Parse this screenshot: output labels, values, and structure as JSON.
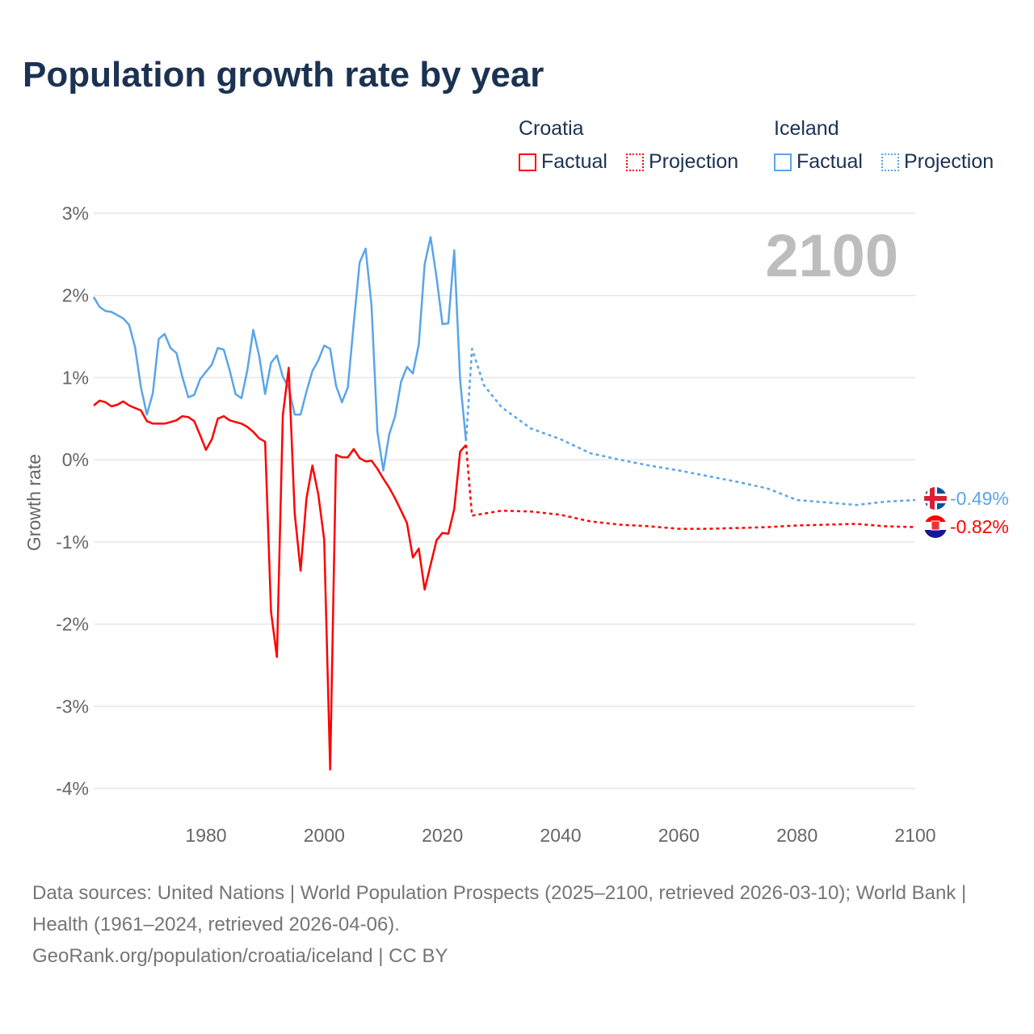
{
  "title": "Population growth rate by year",
  "legend": {
    "groups": [
      {
        "name": "Croatia",
        "factual": "Factual",
        "projection": "Projection",
        "color": "#ff0000"
      },
      {
        "name": "Iceland",
        "factual": "Factual",
        "projection": "Projection",
        "color": "#5aa5e8"
      }
    ]
  },
  "year_label": "2100",
  "end_labels": {
    "iceland": "-0.49%",
    "croatia": "-0.82%"
  },
  "source": {
    "line1": "Data sources: United Nations | World Population Prospects (2025–2100, retrieved 2026-03-10); World Bank | Health (1961–2024, retrieved 2026-04-06).",
    "line2": "GeoRank.org/population/croatia/iceland | CC BY"
  },
  "chart_data": {
    "type": "line",
    "title": "Population growth rate by year",
    "xlabel": "",
    "ylabel": "Growth rate",
    "xlim": [
      1961,
      2100
    ],
    "ylim": [
      -4,
      3
    ],
    "xticks": [
      1980,
      2000,
      2020,
      2040,
      2060,
      2080,
      2100
    ],
    "xtick_labels": [
      "1980",
      "2000",
      "2020",
      "2040",
      "2060",
      "2080",
      "2100"
    ],
    "yticks": [
      3,
      2,
      1,
      0,
      -1,
      -2,
      -3,
      -4
    ],
    "ytick_labels": [
      "3%",
      "2%",
      "1%",
      "0%",
      "-1%",
      "-2%",
      "-3%",
      "-4%"
    ],
    "grid": true,
    "legend_position": "top-right",
    "series": [
      {
        "name": "Iceland Factual",
        "color": "#5aa5e8",
        "dashed": false,
        "start": 1961,
        "values": [
          1.98,
          1.86,
          1.81,
          1.8,
          1.76,
          1.72,
          1.64,
          1.37,
          0.88,
          0.55,
          0.81,
          1.47,
          1.53,
          1.36,
          1.3,
          1.01,
          0.76,
          0.79,
          0.98,
          1.07,
          1.16,
          1.36,
          1.34,
          1.09,
          0.8,
          0.75,
          1.09,
          1.58,
          1.26,
          0.8,
          1.18,
          1.27,
          1.01,
          0.88,
          0.55,
          0.55,
          0.83,
          1.08,
          1.21,
          1.39,
          1.35,
          0.9,
          0.7,
          0.88,
          1.66,
          2.4,
          2.57,
          1.88,
          0.34,
          -0.13,
          0.31,
          0.53,
          0.95,
          1.13,
          1.05,
          1.4,
          2.38,
          2.71,
          2.22,
          1.65,
          1.66,
          2.55,
          0.97,
          0.23
        ]
      },
      {
        "name": "Croatia Factual",
        "color": "#ff0000",
        "dashed": false,
        "start": 1961,
        "values": [
          0.66,
          0.72,
          0.7,
          0.65,
          0.67,
          0.71,
          0.66,
          0.63,
          0.6,
          0.47,
          0.44,
          0.44,
          0.44,
          0.46,
          0.48,
          0.53,
          0.52,
          0.47,
          0.3,
          0.12,
          0.25,
          0.5,
          0.53,
          0.48,
          0.46,
          0.44,
          0.4,
          0.34,
          0.26,
          0.22,
          -1.85,
          -2.4,
          0.54,
          1.12,
          -0.65,
          -1.35,
          -0.47,
          -0.07,
          -0.42,
          -0.97,
          -3.77,
          0.06,
          0.03,
          0.03,
          0.13,
          0.02,
          -0.02,
          -0.01,
          -0.11,
          -0.23,
          -0.34,
          -0.47,
          -0.62,
          -0.77,
          -1.19,
          -1.08,
          -1.58,
          -1.28,
          -0.98,
          -0.89,
          -0.9,
          -0.6,
          0.1,
          0.18
        ]
      },
      {
        "name": "Iceland Projection",
        "color": "#5aa5e8",
        "dashed": true,
        "x": [
          2024,
          2025,
          2027,
          2030,
          2035,
          2040,
          2045,
          2050,
          2055,
          2060,
          2065,
          2070,
          2075,
          2080,
          2085,
          2090,
          2095,
          2100
        ],
        "values": [
          0.23,
          1.35,
          0.91,
          0.64,
          0.38,
          0.25,
          0.08,
          0.0,
          -0.07,
          -0.13,
          -0.2,
          -0.27,
          -0.35,
          -0.49,
          -0.52,
          -0.55,
          -0.51,
          -0.49
        ]
      },
      {
        "name": "Croatia Projection",
        "color": "#ff0000",
        "dashed": true,
        "x": [
          2024,
          2025,
          2030,
          2035,
          2040,
          2045,
          2050,
          2055,
          2060,
          2065,
          2070,
          2075,
          2080,
          2085,
          2090,
          2095,
          2100
        ],
        "values": [
          0.18,
          -0.68,
          -0.62,
          -0.63,
          -0.67,
          -0.75,
          -0.79,
          -0.81,
          -0.84,
          -0.84,
          -0.83,
          -0.82,
          -0.8,
          -0.79,
          -0.78,
          -0.81,
          -0.82
        ]
      }
    ]
  }
}
